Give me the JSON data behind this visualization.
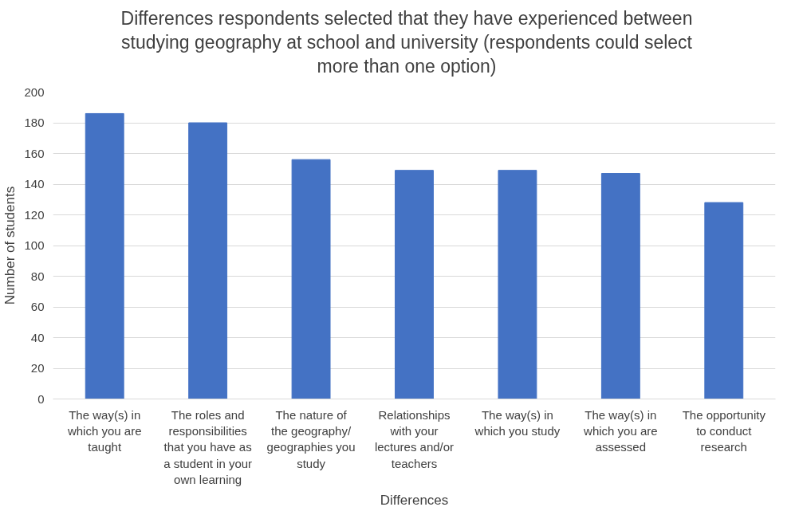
{
  "chart_data": {
    "type": "bar",
    "title": "Differences respondents selected that they have experienced between studying geography at school and university (respondents could select more than one option)",
    "xlabel": "Differences",
    "ylabel": "Number of students",
    "categories": [
      "The way(s) in which you are taught",
      "The roles and responsibilities that you have as a student in your own learning",
      "The nature of the geography/ geographies you study",
      "Relationships with your lectures and/or teachers",
      "The way(s) in which you study",
      "The way(s) in which you are assessed",
      "The opportunity to conduct research"
    ],
    "values": [
      186,
      180,
      156,
      149,
      149,
      147,
      128
    ],
    "color": "#4472c4",
    "ylim": [
      0,
      200
    ],
    "yticks": [
      0,
      20,
      40,
      60,
      80,
      100,
      120,
      140,
      160,
      180,
      200
    ],
    "grid": "y"
  }
}
